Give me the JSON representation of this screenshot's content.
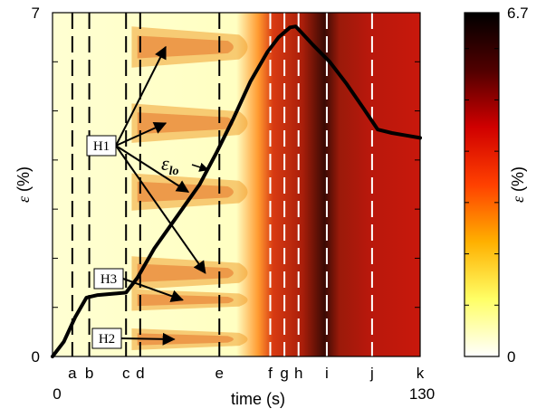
{
  "chart_data": {
    "type": "heatmap",
    "title": "",
    "xlabel": "time (s)",
    "ylabel_symbol": "ε",
    "ylabel_unit": "(%)",
    "xlim": [
      0,
      130
    ],
    "ylim": [
      0,
      7
    ],
    "x_tick_labels": [
      "0",
      "130"
    ],
    "y_tick_labels": [
      "0",
      "7"
    ],
    "colorbar": {
      "label_symbol": "ε",
      "label_unit": "(%)",
      "range": [
        0,
        6.7
      ],
      "tick_labels": [
        "0",
        "6.7"
      ],
      "colors": [
        "#ffffff",
        "#ffff66",
        "#ffb000",
        "#ff4000",
        "#d00000",
        "#500000",
        "#000000"
      ]
    },
    "markers": [
      {
        "label": "a",
        "t": 7,
        "style": "black-dashed"
      },
      {
        "label": "b",
        "t": 13,
        "style": "black-dashed"
      },
      {
        "label": "c",
        "t": 26,
        "style": "black-dashed"
      },
      {
        "label": "d",
        "t": 31,
        "style": "black-dashed"
      },
      {
        "label": "e",
        "t": 59,
        "style": "black-dashed"
      },
      {
        "label": "f",
        "t": 77,
        "style": "white-dashed"
      },
      {
        "label": "g",
        "t": 82,
        "style": "white-dashed"
      },
      {
        "label": "h",
        "t": 87,
        "style": "white-dashed"
      },
      {
        "label": "i",
        "t": 97,
        "style": "white-dashed"
      },
      {
        "label": "j",
        "t": 113,
        "style": "white-dashed"
      },
      {
        "label": "k",
        "t": 130,
        "style": "white-dashed"
      }
    ],
    "series": [
      {
        "name_symbol": "ε",
        "name_sub": "lo",
        "x": [
          0,
          4,
          8,
          12,
          16,
          22,
          26,
          30,
          36,
          44,
          52,
          58,
          64,
          70,
          76,
          80,
          84,
          86,
          88,
          92,
          98,
          104,
          110,
          115,
          120,
          125,
          130
        ],
        "y": [
          0,
          0.3,
          0.8,
          1.2,
          1.25,
          1.28,
          1.3,
          1.6,
          2.2,
          2.85,
          3.5,
          4.15,
          4.85,
          5.6,
          6.2,
          6.5,
          6.7,
          6.72,
          6.6,
          6.35,
          6.0,
          5.55,
          5.05,
          4.62,
          4.55,
          4.5,
          4.45
        ]
      }
    ],
    "annotations": [
      {
        "label": "H1",
        "targets": [
          [
            40,
            6.3
          ],
          [
            40,
            4.75
          ],
          [
            48,
            3.35
          ],
          [
            54,
            1.7
          ]
        ]
      },
      {
        "label": "H3",
        "targets": [
          [
            46,
            1.15
          ]
        ]
      },
      {
        "label": "H2",
        "targets": [
          [
            43,
            0.35
          ]
        ]
      }
    ],
    "grid": false,
    "legend": "none"
  }
}
